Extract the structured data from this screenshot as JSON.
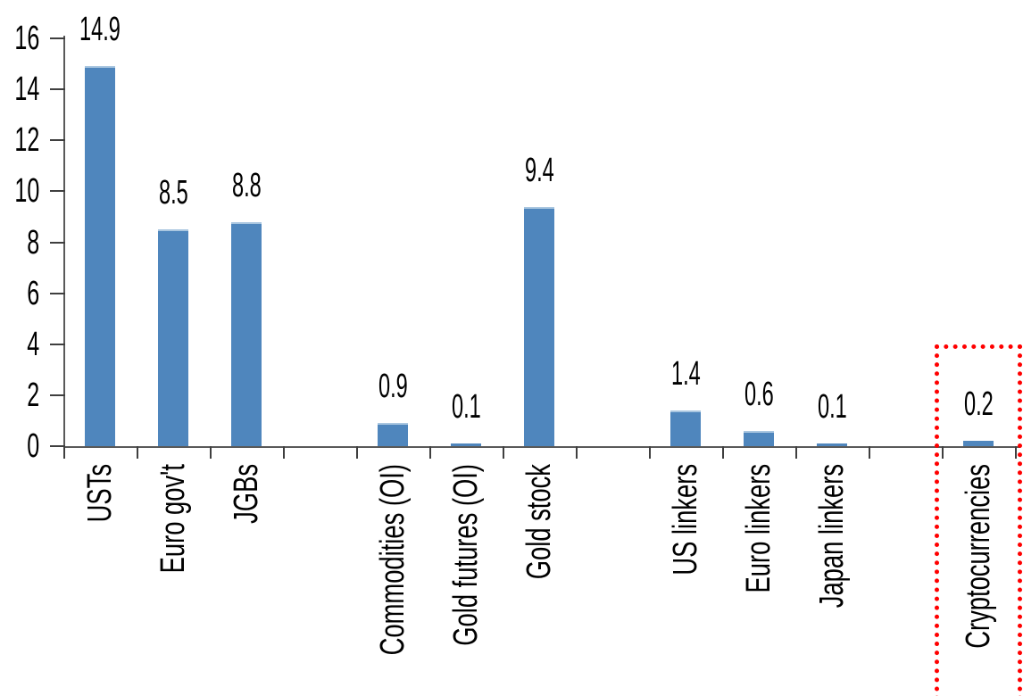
{
  "chart_data": {
    "type": "bar",
    "title": "",
    "categories": [
      "USTs",
      "Euro gov't",
      "JGBs",
      "Commodities (OI)",
      "Gold futures (OI)",
      "Gold stock",
      "US linkers",
      "Euro linkers",
      "Japan linkers",
      "Cryptocurrencies"
    ],
    "values": [
      14.9,
      8.5,
      8.8,
      0.9,
      0.1,
      9.4,
      1.4,
      0.6,
      0.1,
      0.2
    ],
    "value_labels": [
      "14.9",
      "8.5",
      "8.8",
      "0.9",
      "0.1",
      "9.4",
      "1.4",
      "0.6",
      "0.1",
      "0.2"
    ],
    "slots": [
      0,
      1,
      2,
      4,
      5,
      6,
      8,
      9,
      10,
      12
    ],
    "total_slots": 13,
    "xlabel": "",
    "ylabel": "",
    "ylim": [
      0,
      16
    ],
    "yticks": [
      0,
      2,
      4,
      6,
      8,
      10,
      12,
      14,
      16
    ],
    "ytick_labels": [
      "0",
      "2",
      "4",
      "6",
      "8",
      "10",
      "12",
      "14",
      "16"
    ],
    "grid": false,
    "legend": null,
    "bar_color": "#4F86BD",
    "bar_top_edge_color": "#A9C6E0",
    "axis_color": "#595959",
    "tick_color": "#3F3F3F",
    "text_color": "#000000",
    "highlight": {
      "category": "Cryptocurrencies",
      "style": "red-dotted-box",
      "color": "#FF0000"
    }
  }
}
